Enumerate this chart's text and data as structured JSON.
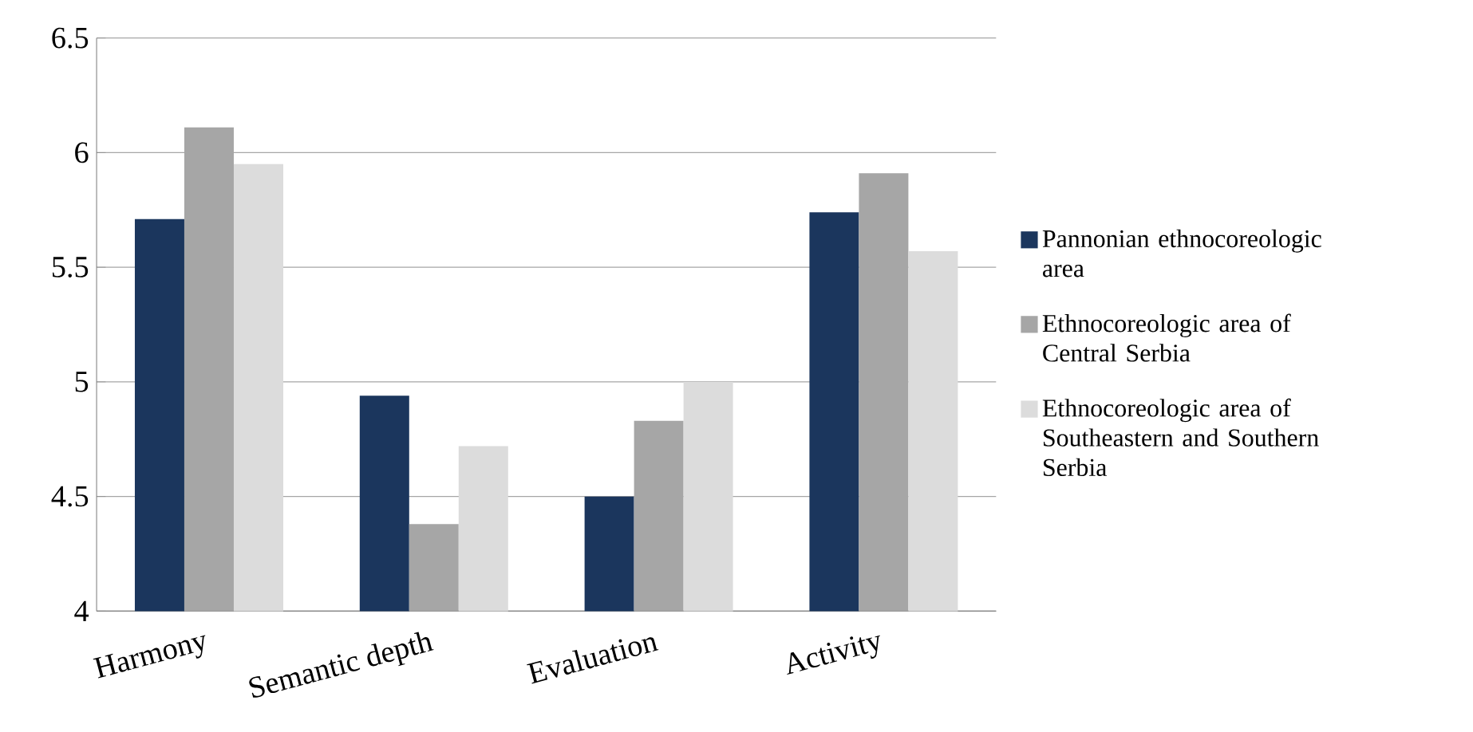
{
  "chart_data": {
    "type": "bar",
    "categories": [
      "Harmony",
      "Semantic depth",
      "Evaluation",
      "Activity"
    ],
    "series": [
      {
        "name": "Pannonian ethnocoreologic area",
        "color": "#1b365d",
        "values": [
          5.71,
          4.94,
          4.5,
          5.74
        ]
      },
      {
        "name": "Ethnocoreologic area of Central Serbia",
        "color": "#a6a6a6",
        "values": [
          6.11,
          4.38,
          4.83,
          5.91
        ]
      },
      {
        "name": "Ethnocoreologic area of Southeastern and Southern Serbia",
        "color": "#dcdcdc",
        "values": [
          5.95,
          4.72,
          5.0,
          5.57
        ]
      }
    ],
    "ylim": [
      4,
      6.5
    ],
    "yticks": [
      4,
      4.5,
      5,
      5.5,
      6,
      6.5
    ],
    "grid": "y",
    "legend": "right"
  }
}
